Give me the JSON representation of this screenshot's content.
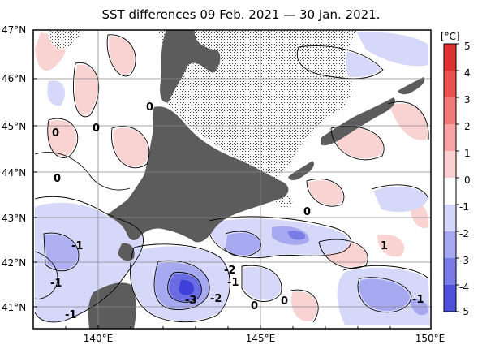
{
  "title": "SST differences 09 Feb. 2021 — 30 Jan. 2021.",
  "lat_labels": [
    "47°N",
    "46°N",
    "45°N",
    "44°N",
    "43°N",
    "42°N",
    "41°N"
  ],
  "lon_labels": [
    "140°E",
    "145°E",
    "150°E"
  ],
  "colorbar": {
    "unit": "[°C]",
    "ticks": [
      "5",
      "4",
      "3",
      "2",
      "1",
      "0",
      "-1",
      "-2",
      "-3",
      "-4",
      "-5"
    ],
    "colors": [
      "#e03030",
      "#ee5050",
      "#f47a7a",
      "#f8a4a4",
      "#fcd0d0",
      "#ffffff",
      "#d4d6fa",
      "#a6a8f0",
      "#7a7ce6",
      "#4e50dc",
      "#2a22d0"
    ]
  },
  "contour_labels": [
    "0",
    "0",
    "0",
    "0",
    "0",
    "-1",
    "-1",
    "-1",
    "-2",
    "-1",
    "-3",
    "-2",
    "0",
    "0",
    "1",
    "-1"
  ],
  "colors": {
    "land": "#5c5c5c",
    "sea_ice": "#f6f6f6",
    "grid": "#888888"
  }
}
